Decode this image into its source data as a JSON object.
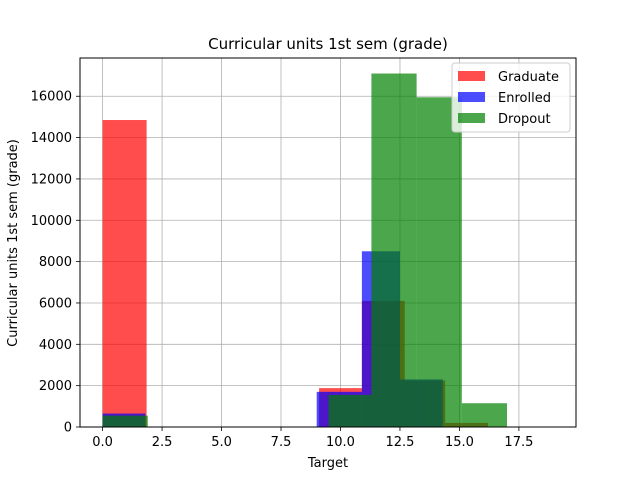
{
  "chart_data": {
    "type": "histogram",
    "title": "Curricular units 1st sem (grade)",
    "xlabel": "Target",
    "ylabel": "Curricular units 1st sem (grade)",
    "xlim": [
      -0.95,
      19.9
    ],
    "ylim": [
      0,
      17850
    ],
    "xticks": [
      0.0,
      2.5,
      5.0,
      7.5,
      10.0,
      12.5,
      15.0,
      17.5
    ],
    "xtick_labels": [
      "0.0",
      "2.5",
      "5.0",
      "7.5",
      "10.0",
      "12.5",
      "15.0",
      "17.5"
    ],
    "yticks": [
      0,
      2000,
      4000,
      6000,
      8000,
      10000,
      12000,
      14000,
      16000
    ],
    "ytick_labels": [
      "0",
      "2000",
      "4000",
      "6000",
      "8000",
      "10000",
      "12000",
      "14000",
      "16000"
    ],
    "grid": true,
    "legend_position": "top-right",
    "series": [
      {
        "name": "Graduate",
        "color": "#ff0000",
        "opacity": 0.7,
        "bins": [
          {
            "x0": 0.0,
            "x1": 1.85,
            "count": 14850
          },
          {
            "x0": 9.1,
            "x1": 10.9,
            "count": 1880
          },
          {
            "x0": 10.9,
            "x1": 12.7,
            "count": 6100
          },
          {
            "x0": 12.7,
            "x1": 14.4,
            "count": 2250
          },
          {
            "x0": 14.4,
            "x1": 16.2,
            "count": 200
          }
        ]
      },
      {
        "name": "Enrolled",
        "color": "#0000ff",
        "opacity": 0.7,
        "bins": [
          {
            "x0": 0.0,
            "x1": 1.8,
            "count": 650
          },
          {
            "x0": 9.0,
            "x1": 10.9,
            "count": 1700
          },
          {
            "x0": 10.9,
            "x1": 12.5,
            "count": 8500
          },
          {
            "x0": 12.5,
            "x1": 14.3,
            "count": 2300
          }
        ]
      },
      {
        "name": "Dropout",
        "color": "#008000",
        "opacity": 0.7,
        "bins": [
          {
            "x0": 0.0,
            "x1": 1.9,
            "count": 550
          },
          {
            "x0": 9.5,
            "x1": 11.3,
            "count": 1550
          },
          {
            "x0": 11.3,
            "x1": 13.2,
            "count": 17100
          },
          {
            "x0": 13.2,
            "x1": 15.1,
            "count": 15950
          },
          {
            "x0": 15.1,
            "x1": 17.0,
            "count": 1150
          }
        ]
      }
    ]
  }
}
